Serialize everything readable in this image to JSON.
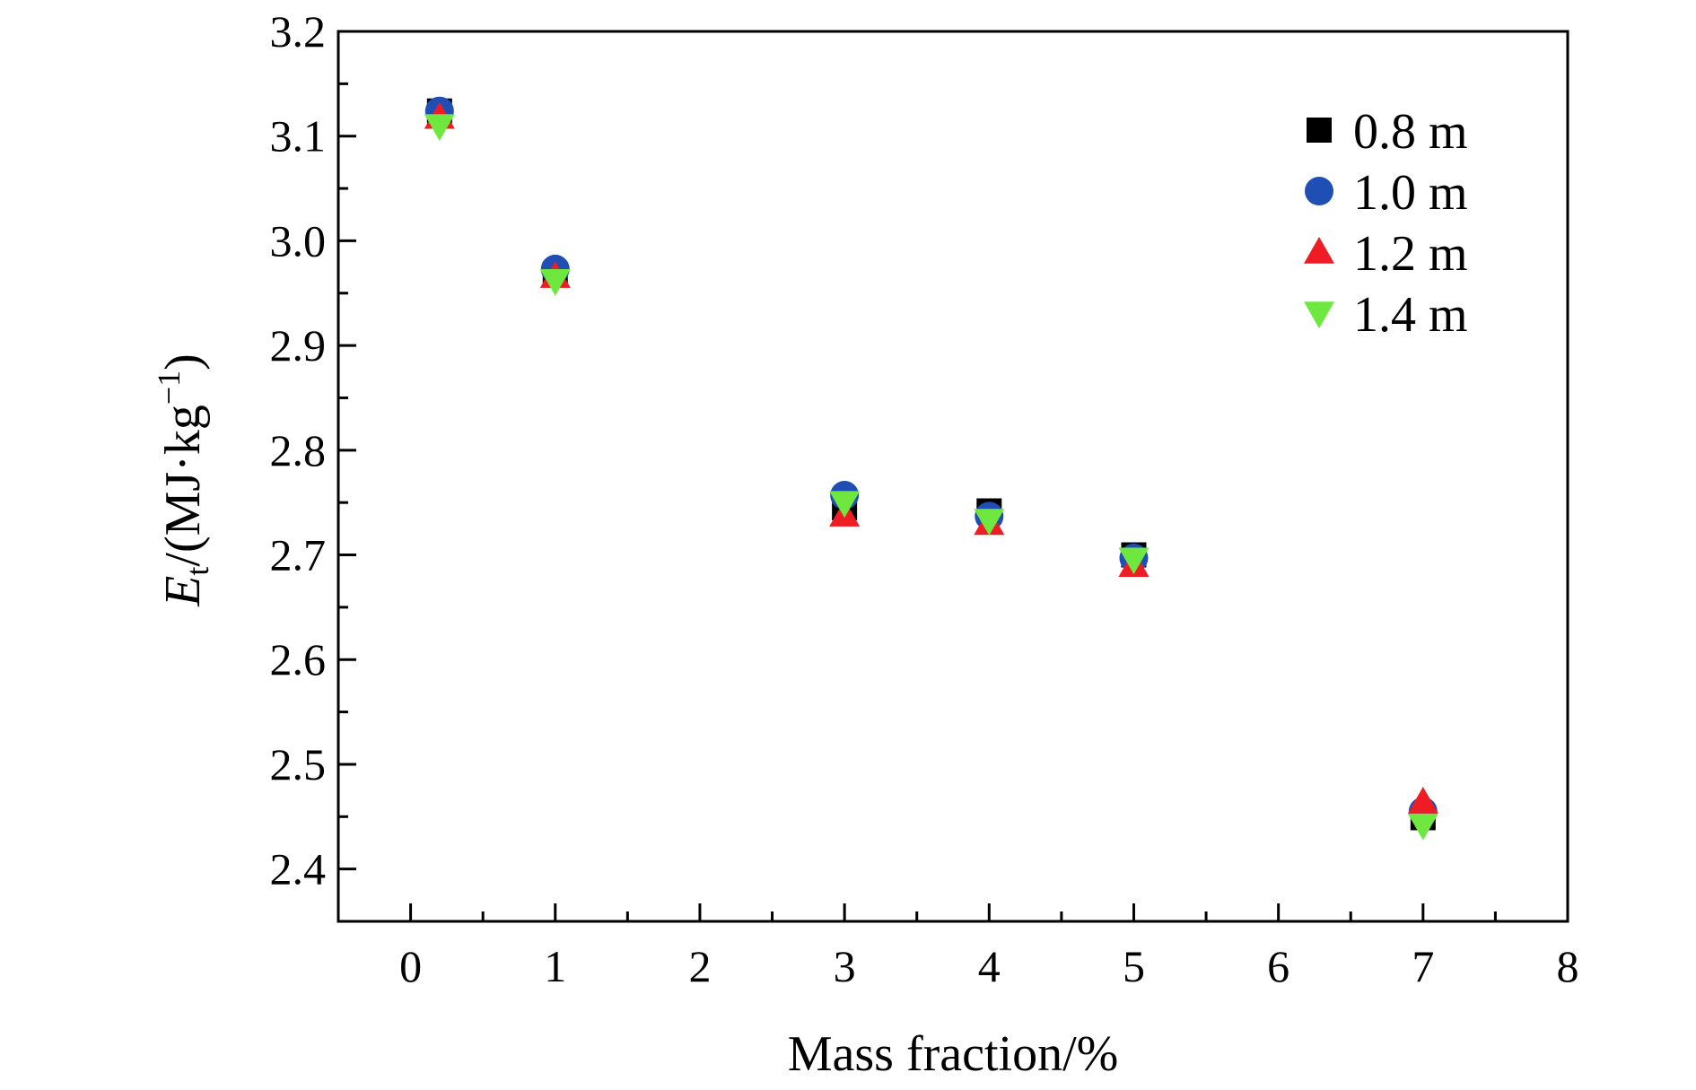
{
  "chart_data": {
    "type": "scatter",
    "xlabel": "Mass fraction/%",
    "ylabel": {
      "symbol": "E",
      "subscript": "t",
      "unit_prefix": "/(MJ·kg",
      "unit_superscript": "−1",
      "unit_suffix": ")"
    },
    "xlim": [
      -0.5,
      8
    ],
    "ylim": [
      2.35,
      3.2
    ],
    "x_ticks": [
      "0",
      "1",
      "2",
      "3",
      "4",
      "5",
      "6",
      "7",
      "8"
    ],
    "y_ticks": [
      "2.4",
      "2.5",
      "2.6",
      "2.7",
      "2.8",
      "2.9",
      "3.0",
      "3.1",
      "3.2"
    ],
    "x_tick_values": [
      0,
      1,
      2,
      3,
      4,
      5,
      6,
      7,
      8
    ],
    "y_tick_values": [
      2.4,
      2.5,
      2.6,
      2.7,
      2.8,
      2.9,
      3.0,
      3.1,
      3.2
    ],
    "legend_position": "top-right",
    "grid": false,
    "series": [
      {
        "name": "0.8 m",
        "marker": "square",
        "color": "#000000",
        "points": [
          [
            0.2,
            3.124
          ],
          [
            1.0,
            2.968
          ],
          [
            3.0,
            2.745
          ],
          [
            4.0,
            2.742
          ],
          [
            5.0,
            2.7
          ],
          [
            7.0,
            2.449
          ]
        ]
      },
      {
        "name": "1.0 m",
        "marker": "circle",
        "color": "#1f4fb5",
        "points": [
          [
            0.2,
            3.124
          ],
          [
            1.0,
            2.973
          ],
          [
            3.0,
            2.757
          ],
          [
            4.0,
            2.737
          ],
          [
            5.0,
            2.697
          ],
          [
            7.0,
            2.455
          ]
        ]
      },
      {
        "name": "1.2 m",
        "marker": "triangle-up",
        "color": "#ee1c25",
        "points": [
          [
            0.2,
            3.118
          ],
          [
            1.0,
            2.966
          ],
          [
            3.0,
            2.738
          ],
          [
            4.0,
            2.73
          ],
          [
            5.0,
            2.69
          ],
          [
            7.0,
            2.464
          ]
        ]
      },
      {
        "name": "1.4 m",
        "marker": "triangle-down",
        "color": "#6ee83e",
        "points": [
          [
            0.2,
            3.11
          ],
          [
            1.0,
            2.962
          ],
          [
            3.0,
            2.75
          ],
          [
            4.0,
            2.733
          ],
          [
            5.0,
            2.696
          ],
          [
            7.0,
            2.442
          ]
        ]
      }
    ]
  }
}
